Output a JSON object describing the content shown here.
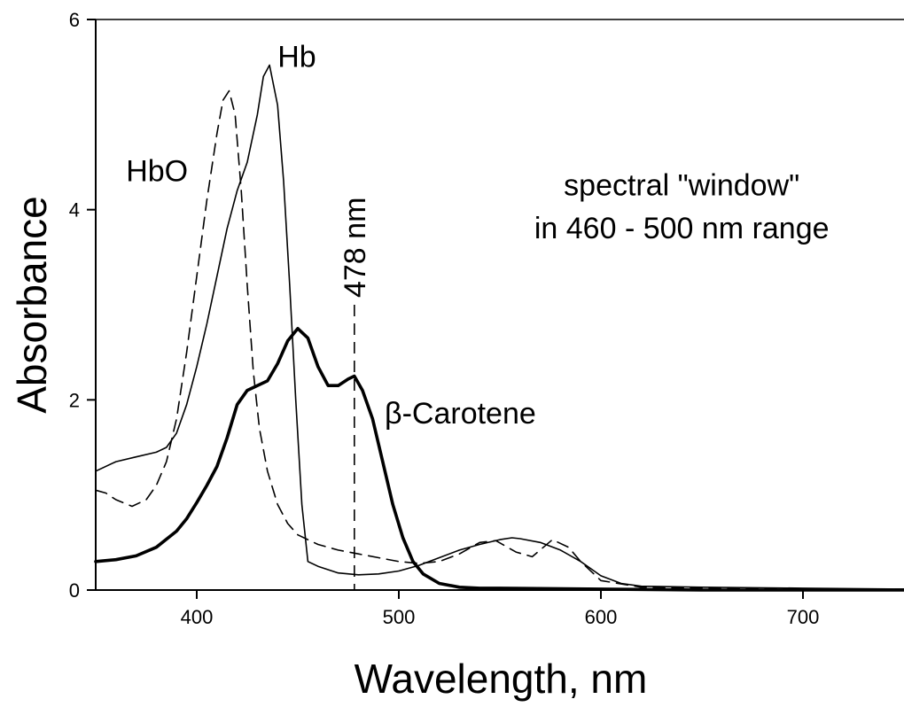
{
  "chart_data": {
    "type": "line",
    "title": "",
    "xlabel": "Wavelength, nm",
    "ylabel": "Absorbance",
    "xlim": [
      350,
      750
    ],
    "ylim": [
      0,
      6
    ],
    "xticks": [
      400,
      500,
      600,
      700
    ],
    "yticks": [
      0,
      2,
      4,
      6
    ],
    "grid": false,
    "series": [
      {
        "name": "Hb",
        "style": "thin-solid",
        "x": [
          350,
          360,
          370,
          380,
          385,
          390,
          395,
          400,
          405,
          410,
          415,
          420,
          425,
          430,
          433,
          436,
          440,
          443,
          446,
          449,
          452,
          455,
          460,
          470,
          480,
          490,
          500,
          510,
          520,
          530,
          540,
          550,
          556,
          560,
          570,
          580,
          590,
          600,
          610,
          620,
          650,
          700,
          750
        ],
        "y": [
          1.25,
          1.35,
          1.4,
          1.45,
          1.5,
          1.65,
          1.95,
          2.35,
          2.8,
          3.3,
          3.8,
          4.2,
          4.5,
          5.0,
          5.4,
          5.52,
          5.1,
          4.3,
          3.2,
          2.0,
          0.9,
          0.3,
          0.25,
          0.18,
          0.16,
          0.17,
          0.2,
          0.26,
          0.34,
          0.42,
          0.48,
          0.53,
          0.55,
          0.54,
          0.5,
          0.42,
          0.3,
          0.15,
          0.07,
          0.04,
          0.03,
          0.02,
          0.01
        ]
      },
      {
        "name": "HbO",
        "style": "dashed",
        "x": [
          350,
          355,
          360,
          368,
          375,
          380,
          385,
          390,
          395,
          400,
          405,
          410,
          413,
          416,
          419,
          422,
          425,
          428,
          431,
          435,
          440,
          445,
          450,
          460,
          470,
          480,
          490,
          500,
          510,
          520,
          530,
          540,
          548,
          558,
          566,
          576,
          584,
          590,
          600,
          620,
          650,
          700,
          750
        ],
        "y": [
          1.05,
          1.02,
          0.95,
          0.88,
          0.95,
          1.1,
          1.35,
          1.8,
          2.5,
          3.3,
          4.1,
          4.8,
          5.15,
          5.25,
          5.0,
          4.2,
          3.2,
          2.3,
          1.7,
          1.25,
          0.9,
          0.7,
          0.58,
          0.48,
          0.42,
          0.38,
          0.34,
          0.3,
          0.28,
          0.3,
          0.38,
          0.5,
          0.52,
          0.4,
          0.35,
          0.53,
          0.45,
          0.3,
          0.1,
          0.03,
          0.02,
          0.01,
          0.01
        ]
      },
      {
        "name": "β-Carotene",
        "style": "thick-solid",
        "x": [
          350,
          360,
          370,
          380,
          390,
          395,
          400,
          405,
          410,
          415,
          420,
          425,
          430,
          435,
          440,
          445,
          450,
          455,
          460,
          465,
          470,
          475,
          478,
          482,
          487,
          492,
          497,
          502,
          507,
          512,
          520,
          530,
          540,
          550,
          600,
          650,
          700,
          750
        ],
        "y": [
          0.3,
          0.32,
          0.36,
          0.45,
          0.62,
          0.75,
          0.92,
          1.1,
          1.3,
          1.6,
          1.95,
          2.1,
          2.15,
          2.2,
          2.38,
          2.62,
          2.75,
          2.65,
          2.35,
          2.15,
          2.15,
          2.22,
          2.25,
          2.1,
          1.8,
          1.35,
          0.9,
          0.55,
          0.3,
          0.17,
          0.07,
          0.03,
          0.02,
          0.02,
          0.01,
          0.0,
          0.0,
          0.0
        ]
      }
    ],
    "marker_line": {
      "x": 478,
      "y_top": 3.0,
      "label": "478 nm"
    },
    "annotations": [
      {
        "text": "Hb",
        "x": 440,
        "y": 5.5
      },
      {
        "text": "HbO",
        "x": 365,
        "y": 4.3
      },
      {
        "text": "β-Carotene",
        "x": 493,
        "y": 1.75
      },
      {
        "text": "spectral \"window\"",
        "x": 640,
        "y": 4.15
      },
      {
        "text": "in 460 - 500 nm range",
        "x": 640,
        "y": 3.7
      }
    ]
  }
}
